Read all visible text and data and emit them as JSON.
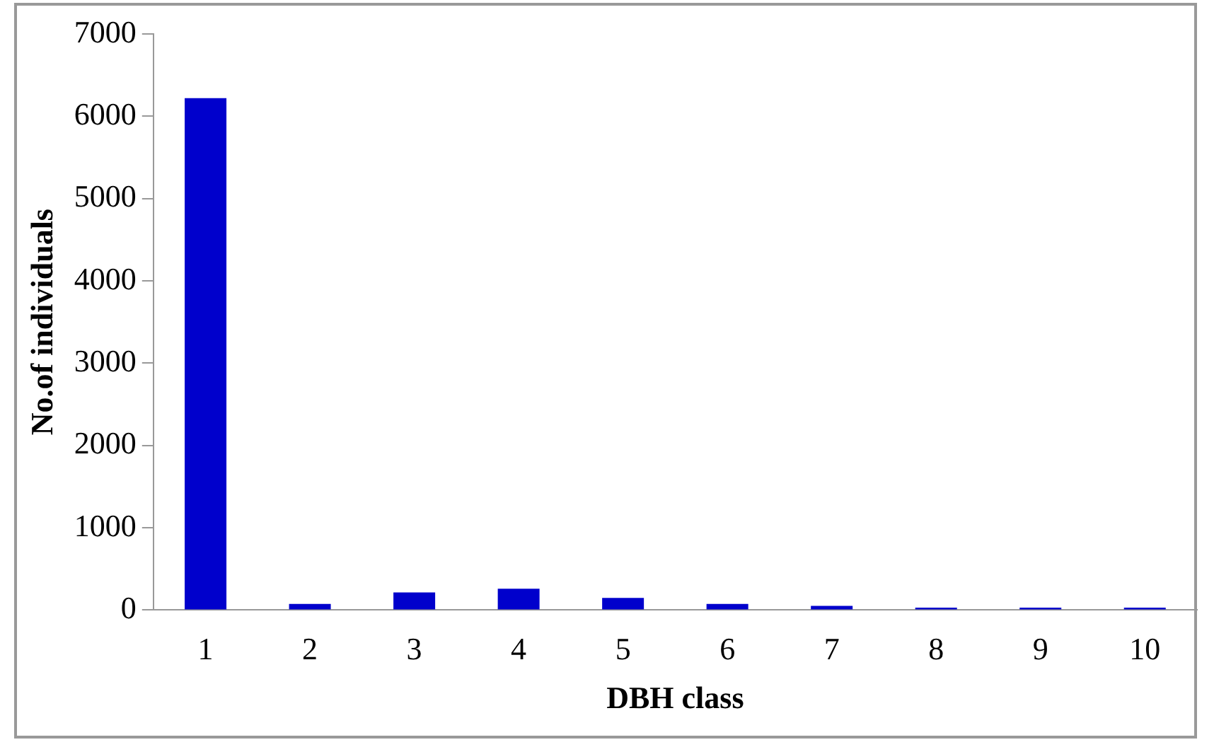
{
  "chart_data": {
    "type": "bar",
    "xlabel": "DBH class",
    "ylabel": "No.of individuals",
    "categories": [
      "1",
      "2",
      "3",
      "4",
      "5",
      "6",
      "7",
      "8",
      "9",
      "10"
    ],
    "values": [
      6220,
      75,
      215,
      260,
      147,
      75,
      50,
      30,
      30,
      30
    ],
    "color": "#0000cc",
    "ylim": [
      0,
      7000
    ],
    "yticks": [
      0,
      1000,
      2000,
      3000,
      4000,
      5000,
      6000,
      7000
    ],
    "grid": false,
    "legend": false
  }
}
